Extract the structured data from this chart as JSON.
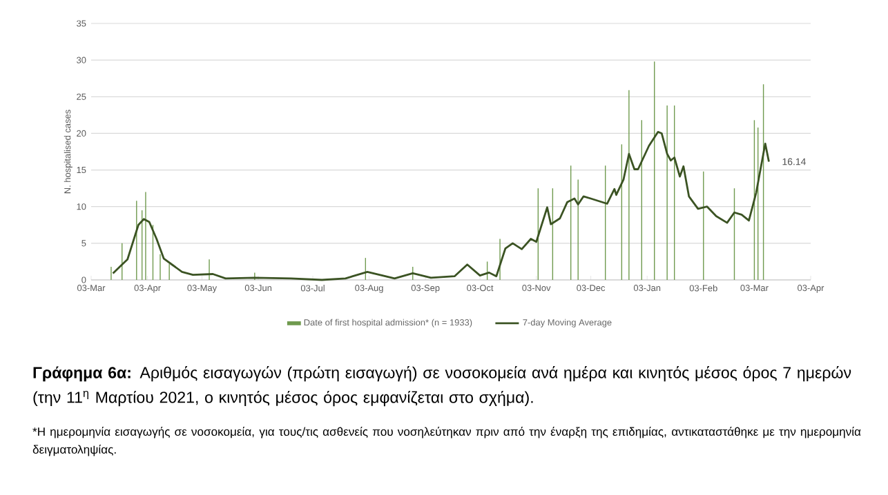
{
  "chart_data": {
    "type": "line",
    "ylabel": "N. hospitalised cases",
    "xlim": [
      "2020-03-03",
      "2021-04-03"
    ],
    "xticks": [
      {
        "value": "2020-03-03",
        "label": "03-Mar"
      },
      {
        "value": "2020-04-03",
        "label": "03-Apr"
      },
      {
        "value": "2020-05-03",
        "label": "03-May"
      },
      {
        "value": "2020-06-03",
        "label": "03-Jun"
      },
      {
        "value": "2020-07-03",
        "label": "03-Jul"
      },
      {
        "value": "2020-08-03",
        "label": "03-Aug"
      },
      {
        "value": "2020-09-03",
        "label": "03-Sep"
      },
      {
        "value": "2020-10-03",
        "label": "03-Oct"
      },
      {
        "value": "2020-11-03",
        "label": "03-Nov"
      },
      {
        "value": "2020-12-03",
        "label": "03-Dec"
      },
      {
        "value": "2021-01-03",
        "label": "03-Jan"
      },
      {
        "value": "2021-02-03",
        "label": "03-Feb"
      },
      {
        "value": "2021-03-03",
        "label": "03-Mar"
      },
      {
        "value": "2021-04-03",
        "label": "03-Apr"
      }
    ],
    "ylim": [
      0,
      35
    ],
    "yticks": [
      0,
      5,
      10,
      15,
      20,
      25,
      30,
      35
    ],
    "grid": "y",
    "legend": "bottom",
    "series": [
      {
        "name": "Date of first hospital admission* (n = 1933)",
        "type": "bar",
        "color": "#6f9a4e",
        "x": [
          "2020-03-14",
          "2020-03-20",
          "2020-03-28",
          "2020-03-31",
          "2020-04-02",
          "2020-04-06",
          "2020-04-10",
          "2020-04-15",
          "2020-05-07",
          "2020-06-01",
          "2020-08-01",
          "2020-08-27",
          "2020-10-07",
          "2020-10-14",
          "2020-11-04",
          "2020-11-12",
          "2020-11-22",
          "2020-11-26",
          "2020-12-11",
          "2020-12-20",
          "2020-12-24",
          "2020-12-31",
          "2021-01-07",
          "2021-01-14",
          "2021-01-18",
          "2021-02-03",
          "2021-02-20",
          "2021-03-03",
          "2021-03-05",
          "2021-03-08"
        ],
        "values": [
          1.8,
          5.0,
          10.8,
          9.5,
          12.0,
          7.5,
          3.5,
          2.2,
          2.8,
          1.0,
          3.0,
          1.8,
          2.5,
          5.6,
          12.5,
          12.5,
          15.6,
          13.7,
          15.6,
          18.5,
          25.9,
          21.8,
          29.8,
          23.8,
          23.8,
          14.8,
          12.5,
          21.8,
          20.8,
          26.7
        ]
      },
      {
        "name": "7-day Moving Average",
        "color": "#3b5323",
        "x": [
          "2020-03-15",
          "2020-03-20",
          "2020-03-23",
          "2020-03-29",
          "2020-04-01",
          "2020-04-04",
          "2020-04-08",
          "2020-04-12",
          "2020-04-17",
          "2020-04-22",
          "2020-04-28",
          "2020-05-09",
          "2020-05-16",
          "2020-06-01",
          "2020-06-21",
          "2020-07-08",
          "2020-07-21",
          "2020-08-02",
          "2020-08-17",
          "2020-08-27",
          "2020-09-06",
          "2020-09-19",
          "2020-09-26",
          "2020-10-03",
          "2020-10-08",
          "2020-10-12",
          "2020-10-17",
          "2020-10-21",
          "2020-10-26",
          "2020-10-31",
          "2020-11-03",
          "2020-11-09",
          "2020-11-11",
          "2020-11-16",
          "2020-11-20",
          "2020-11-24",
          "2020-11-26",
          "2020-11-29",
          "2020-12-03",
          "2020-12-12",
          "2020-12-16",
          "2020-12-17",
          "2020-12-21",
          "2020-12-24",
          "2020-12-27",
          "2020-12-29",
          "2021-01-04",
          "2021-01-09",
          "2021-01-11",
          "2021-01-14",
          "2021-01-16",
          "2021-01-18",
          "2021-01-21",
          "2021-01-23",
          "2021-01-26",
          "2021-01-31",
          "2021-02-05",
          "2021-02-10",
          "2021-02-16",
          "2021-02-20",
          "2021-02-24",
          "2021-02-28",
          "2021-03-04",
          "2021-03-09",
          "2021-03-11"
        ],
        "values": [
          0.9,
          2.1,
          2.8,
          7.5,
          8.3,
          7.9,
          5.6,
          2.9,
          2.0,
          1.1,
          0.7,
          0.8,
          0.2,
          0.3,
          0.2,
          0,
          0.2,
          1.1,
          0.2,
          0.9,
          0.3,
          0.5,
          2.1,
          0.6,
          1.0,
          0.5,
          4.3,
          5.0,
          4.2,
          5.6,
          5.2,
          9.9,
          7.6,
          8.4,
          10.6,
          11.1,
          10.3,
          11.4,
          11.1,
          10.4,
          12.4,
          11.6,
          13.7,
          17.2,
          15.1,
          15.1,
          18.3,
          20.2,
          20.0,
          17.2,
          16.3,
          16.7,
          14.1,
          15.5,
          11.4,
          9.7,
          10.0,
          8.7,
          7.8,
          9.2,
          8.9,
          8.1,
          11.9,
          18.6,
          16.14
        ]
      }
    ],
    "annotations": [
      {
        "text": "16.14",
        "x": "2021-03-11",
        "y": 16.14
      },
      "**Γράφημα 6α:** Αριθμός εισαγωγών (πρώτη εισαγωγή) σε νοσοκομεία ανά ημέρα και κινητός μέσος όρος 7 ημερών (την 11$^{η}$ Μαρτίου 2021, ο κινητός μέσος όρος εμφανίζεται στο σχήμα).",
      "*Η ημερομηνία εισαγωγής σε νοσοκομεία, για τους/τις ασθενείς που νοσηλεύτηκαν πριν από την έναρξη της επιδημίας, αντικαταστάθηκε με την ημερομηνία δειγματοληψίας."
    ]
  }
}
